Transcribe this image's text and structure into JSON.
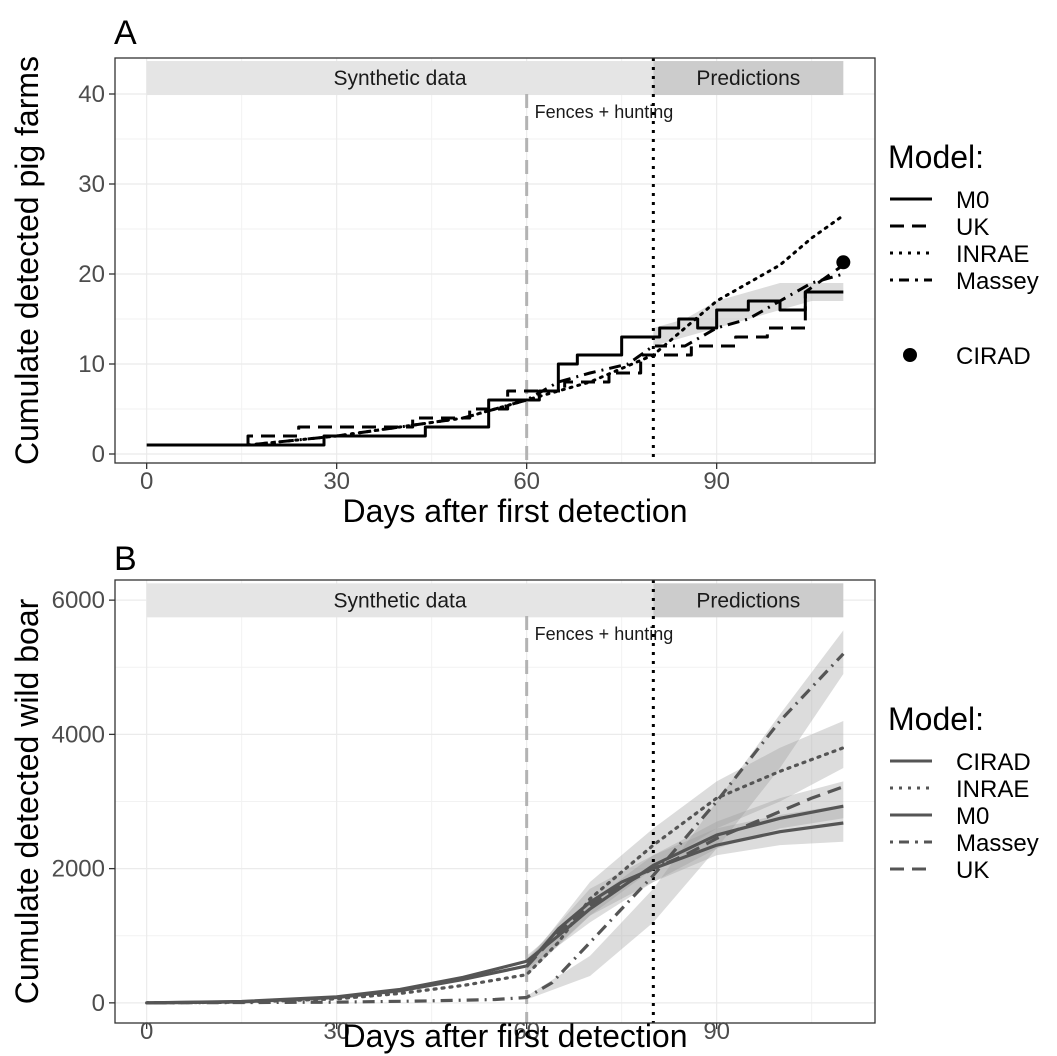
{
  "chart_data": [
    {
      "type": "line",
      "panel_label": "A",
      "xlabel": "Days after first detection",
      "ylabel": "Cumulate detected pig farms",
      "xlim": [
        -5,
        115
      ],
      "ylim": [
        -1,
        44
      ],
      "xticks": [
        0,
        30,
        60,
        90
      ],
      "yticks": [
        0,
        10,
        20,
        30,
        40
      ],
      "grid": true,
      "legend_title": "Model:",
      "legend_position": "right",
      "regions": [
        {
          "label": "Synthetic data",
          "x": [
            0,
            80
          ],
          "color": "#e5e5e5"
        },
        {
          "label": "Predictions",
          "x": [
            80,
            110
          ],
          "color": "#cccccc"
        }
      ],
      "vlines": [
        {
          "x": 60,
          "style": "dashed",
          "color": "#b3b3b3",
          "label": "Fences + hunting"
        },
        {
          "x": 80,
          "style": "dotted",
          "color": "#000000"
        }
      ],
      "bands": [
        {
          "series": "M0",
          "x": [
            80,
            85,
            90,
            95,
            100,
            105,
            110
          ],
          "lower": [
            12,
            13,
            14,
            15,
            16,
            17,
            17
          ],
          "upper": [
            14,
            15,
            17,
            18,
            19,
            19,
            19
          ]
        }
      ],
      "series": [
        {
          "name": "M0",
          "style": "solid",
          "x": [
            0,
            28,
            28,
            44,
            44,
            54,
            54,
            62,
            62,
            65,
            65,
            68,
            68,
            75,
            75,
            81,
            81,
            84,
            84,
            87,
            87,
            90,
            90,
            95,
            95,
            100,
            100,
            104,
            104,
            110
          ],
          "y": [
            1,
            1,
            2,
            2,
            3,
            3,
            6,
            6,
            7,
            7,
            10,
            10,
            11,
            11,
            13,
            13,
            14,
            14,
            15,
            15,
            14,
            14,
            16,
            16,
            17,
            17,
            16,
            16,
            18,
            18
          ]
        },
        {
          "name": "UK",
          "style": "dashed",
          "x": [
            16,
            16,
            24,
            24,
            42,
            42,
            51,
            51,
            57,
            57,
            66,
            66,
            73,
            73,
            78,
            78,
            86,
            86,
            93,
            93,
            98,
            98,
            104,
            104,
            110
          ],
          "y": [
            1,
            2,
            2,
            3,
            3,
            4,
            4,
            5,
            5,
            7,
            7,
            8,
            8,
            9,
            9,
            11,
            11,
            12,
            12,
            13,
            13,
            14,
            14,
            18,
            21
          ]
        },
        {
          "name": "INRAE",
          "style": "dotted",
          "x": [
            16,
            30,
            40,
            50,
            60,
            70,
            80,
            85,
            90,
            95,
            100,
            105,
            110
          ],
          "y": [
            1,
            2,
            3,
            4,
            6,
            8,
            11,
            14,
            17,
            19,
            21,
            24,
            26.5
          ]
        },
        {
          "name": "Massey",
          "style": "dotdash",
          "x": [
            16,
            30,
            40,
            50,
            60,
            65,
            70,
            76,
            80,
            85,
            90,
            95,
            100,
            105,
            110
          ],
          "y": [
            1,
            2,
            3,
            4,
            6,
            8,
            9,
            10,
            12,
            12,
            14,
            15,
            17,
            19,
            20
          ]
        },
        {
          "name": "CIRAD",
          "style": "point",
          "x": [
            110
          ],
          "y": [
            21.3
          ]
        }
      ]
    },
    {
      "type": "line",
      "panel_label": "B",
      "xlabel": "Days after first detection",
      "ylabel": "Cumulate detected wild boar",
      "xlim": [
        -5,
        115
      ],
      "ylim": [
        -300,
        6300
      ],
      "xticks": [
        0,
        30,
        60,
        90
      ],
      "yticks": [
        0,
        2000,
        4000,
        6000
      ],
      "grid": true,
      "legend_title": "Model:",
      "legend_position": "right",
      "regions": [
        {
          "label": "Synthetic data",
          "x": [
            0,
            80
          ],
          "color": "#e5e5e5"
        },
        {
          "label": "Predictions",
          "x": [
            80,
            110
          ],
          "color": "#cccccc"
        }
      ],
      "vlines": [
        {
          "x": 60,
          "style": "dashed",
          "color": "#b3b3b3",
          "label": "Fences + hunting"
        },
        {
          "x": 80,
          "style": "dotted",
          "color": "#000000"
        }
      ],
      "bands": [
        {
          "series": "UK",
          "x": [
            60,
            70,
            80,
            90,
            100,
            110
          ],
          "lower": [
            50,
            400,
            1200,
            2300,
            3500,
            4900
          ],
          "upper": [
            100,
            700,
            1700,
            3000,
            4300,
            5550
          ]
        },
        {
          "series": "INRAE",
          "x": [
            60,
            70,
            80,
            90,
            100,
            110
          ],
          "lower": [
            400,
            1300,
            2000,
            2600,
            3000,
            3500
          ],
          "upper": [
            600,
            1800,
            2600,
            3300,
            3800,
            4200
          ]
        },
        {
          "series": "M0",
          "x": [
            60,
            70,
            80,
            90,
            100,
            110
          ],
          "lower": [
            450,
            1300,
            1800,
            2200,
            2350,
            2400
          ],
          "upper": [
            650,
            1700,
            2200,
            2600,
            2800,
            2950
          ]
        },
        {
          "series": "CIRAD",
          "x": [
            60,
            70,
            80,
            90,
            100,
            110
          ],
          "lower": [
            500,
            1200,
            1800,
            2300,
            2600,
            2750
          ],
          "upper": [
            700,
            1500,
            2200,
            2700,
            3050,
            3300
          ]
        }
      ],
      "series": [
        {
          "name": "CIRAD",
          "style": "solid",
          "x": [
            0,
            15,
            30,
            40,
            50,
            60,
            65,
            70,
            80,
            90,
            100,
            110
          ],
          "y": [
            0,
            20,
            90,
            200,
            380,
            620,
            1000,
            1400,
            2050,
            2500,
            2750,
            2930
          ]
        },
        {
          "name": "INRAE",
          "style": "dotted",
          "x": [
            0,
            15,
            30,
            40,
            50,
            60,
            65,
            70,
            80,
            90,
            100,
            110
          ],
          "y": [
            0,
            10,
            60,
            140,
            260,
            420,
            900,
            1550,
            2350,
            3050,
            3450,
            3800
          ]
        },
        {
          "name": "M0",
          "style": "solid",
          "x": [
            0,
            15,
            30,
            40,
            50,
            60,
            65,
            70,
            75,
            80,
            90,
            100,
            110
          ],
          "y": [
            0,
            15,
            80,
            180,
            350,
            550,
            1100,
            1500,
            1800,
            2000,
            2350,
            2550,
            2680
          ]
        },
        {
          "name": "Massey",
          "style": "dotdash",
          "x": [
            0,
            30,
            45,
            55,
            60,
            64,
            70,
            80,
            90,
            100,
            110
          ],
          "y": [
            0,
            10,
            30,
            50,
            80,
            300,
            900,
            1900,
            3000,
            4200,
            5200
          ]
        },
        {
          "name": "UK",
          "style": "dashed",
          "x": [
            60,
            65,
            70,
            75,
            80,
            85,
            90,
            95,
            100,
            105,
            110
          ],
          "y": [
            540,
            1050,
            1450,
            1750,
            2000,
            2200,
            2450,
            2650,
            2850,
            3050,
            3220
          ]
        }
      ]
    }
  ]
}
